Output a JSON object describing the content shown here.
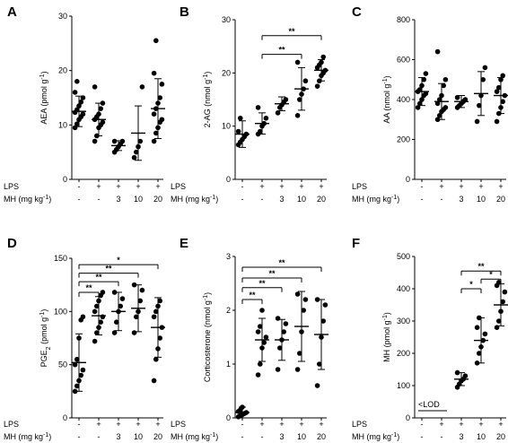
{
  "row_labels": {
    "lps": "LPS",
    "mh": "MH (mg kg",
    "mh_sup": "-1",
    "mh_close": ")"
  },
  "chart_data": [
    {
      "type": "scatter",
      "panel": "A",
      "ylabel": "AEA (pmol g",
      "ylabel_sup": "-1",
      "ylabel_close": ")",
      "ylim": [
        0,
        30
      ],
      "yticks": [
        0,
        10,
        20,
        30
      ],
      "lps": [
        "-",
        "+",
        "+",
        "+",
        "+"
      ],
      "mh": [
        "-",
        "-",
        "3",
        "10",
        "20"
      ],
      "groups": [
        {
          "mean": 12.5,
          "sd": 2.8,
          "points": [
            9.5,
            10.2,
            11.0,
            11.5,
            12.0,
            12.3,
            12.8,
            13.5,
            14.2,
            15.0,
            16.0,
            18.0
          ]
        },
        {
          "mean": 11.0,
          "sd": 3.0,
          "points": [
            7.0,
            8.0,
            9.5,
            10.0,
            10.5,
            11.0,
            11.5,
            12.0,
            13.0,
            14.0,
            17.0
          ]
        },
        {
          "mean": 6.2,
          "sd": 0.9,
          "points": [
            5.0,
            5.5,
            6.0,
            6.5,
            7.0,
            7.0
          ]
        },
        {
          "mean": 8.5,
          "sd": 5.0,
          "points": [
            4.0,
            5.0,
            6.0,
            7.0,
            17.0
          ]
        },
        {
          "mean": 13.0,
          "sd": 5.5,
          "points": [
            7.0,
            8.5,
            9.5,
            10.5,
            11.0,
            12.0,
            13.0,
            14.0,
            15.0,
            17.5,
            19.5,
            25.5
          ]
        }
      ],
      "brackets": []
    },
    {
      "type": "scatter",
      "panel": "B",
      "ylabel": "2-AG (nmol g",
      "ylabel_sup": "-1",
      "ylabel_close": ")",
      "ylim": [
        0,
        30
      ],
      "yticks": [
        0,
        10,
        20,
        30
      ],
      "lps": [
        "-",
        "+",
        "+",
        "+",
        "+"
      ],
      "mh": [
        "-",
        "-",
        "3",
        "10",
        "20"
      ],
      "groups": [
        {
          "mean": 8.5,
          "sd": 2.5,
          "points": [
            6.5,
            7.0,
            7.5,
            8.0,
            8.5,
            9.0,
            11.5
          ]
        },
        {
          "mean": 10.5,
          "sd": 2.0,
          "points": [
            8.5,
            9.0,
            10.0,
            10.5,
            11.5,
            13.5
          ]
        },
        {
          "mean": 14.2,
          "sd": 1.3,
          "points": [
            12.5,
            13.5,
            14.0,
            14.5,
            15.0
          ]
        },
        {
          "mean": 17.0,
          "sd": 4.0,
          "points": [
            12.0,
            15.0,
            16.0,
            17.0,
            18.5,
            22.0
          ]
        },
        {
          "mean": 20.5,
          "sd": 2.0,
          "points": [
            17.5,
            18.5,
            19.5,
            20.0,
            20.5,
            21.0,
            21.5,
            22.0,
            23.0
          ]
        }
      ],
      "brackets": [
        {
          "from": 1,
          "to": 4,
          "y": 27.0,
          "label": "**"
        },
        {
          "from": 1,
          "to": 3,
          "y": 23.5,
          "label": "**"
        }
      ]
    },
    {
      "type": "scatter",
      "panel": "C",
      "ylabel": "AA (nmol g",
      "ylabel_sup": "-1",
      "ylabel_close": ")",
      "ylim": [
        0,
        800
      ],
      "yticks": [
        0,
        200,
        400,
        600,
        800
      ],
      "lps": [
        "-",
        "+",
        "+",
        "+",
        "+"
      ],
      "mh": [
        "-",
        "-",
        "3",
        "10",
        "20"
      ],
      "groups": [
        {
          "mean": 440,
          "sd": 70,
          "points": [
            360,
            380,
            400,
            420,
            430,
            440,
            450,
            470,
            500,
            530
          ]
        },
        {
          "mean": 390,
          "sd": 90,
          "points": [
            300,
            320,
            340,
            350,
            360,
            380,
            400,
            420,
            470,
            500,
            640
          ]
        },
        {
          "mean": 390,
          "sd": 30,
          "points": [
            360,
            370,
            380,
            390,
            400,
            410
          ]
        },
        {
          "mean": 430,
          "sd": 110,
          "points": [
            290,
            370,
            420,
            500,
            560
          ]
        },
        {
          "mean": 420,
          "sd": 90,
          "points": [
            290,
            330,
            360,
            390,
            420,
            440,
            460,
            500,
            520
          ]
        }
      ],
      "brackets": []
    },
    {
      "type": "scatter",
      "panel": "D",
      "ylabel": "PGE",
      "ylabel_sub": "2",
      "ylabel_rest": " (pmol g",
      "ylabel_sup": "-1",
      "ylabel_close": ")",
      "ylim": [
        0,
        150
      ],
      "yticks": [
        0,
        50,
        100,
        150
      ],
      "lps": [
        "-",
        "+",
        "+",
        "+",
        "+"
      ],
      "mh": [
        "-",
        "-",
        "3",
        "10",
        "20"
      ],
      "groups": [
        {
          "mean": 52,
          "sd": 27,
          "points": [
            25,
            30,
            35,
            40,
            45,
            50,
            55,
            75,
            92,
            95
          ]
        },
        {
          "mean": 96,
          "sd": 18,
          "points": [
            72,
            80,
            85,
            90,
            95,
            100,
            105,
            110,
            115,
            118
          ]
        },
        {
          "mean": 100,
          "sd": 18,
          "points": [
            80,
            90,
            100,
            105,
            112,
            118
          ]
        },
        {
          "mean": 103,
          "sd": 22,
          "points": [
            80,
            95,
            100,
            110,
            120,
            125
          ]
        },
        {
          "mean": 85,
          "sd": 28,
          "points": [
            35,
            55,
            65,
            75,
            85,
            95,
            100,
            105,
            110
          ]
        }
      ],
      "brackets": [
        {
          "from": 0,
          "to": 4,
          "y": 144,
          "label": "*"
        },
        {
          "from": 0,
          "to": 3,
          "y": 136,
          "label": "**"
        },
        {
          "from": 0,
          "to": 2,
          "y": 128,
          "label": "**"
        },
        {
          "from": 0,
          "to": 1,
          "y": 118,
          "label": "**"
        }
      ]
    },
    {
      "type": "scatter",
      "panel": "E",
      "ylabel": "Corticosterone (nmol g",
      "ylabel_sup": "-1",
      "ylabel_close": ")",
      "ylim": [
        0,
        3
      ],
      "yticks": [
        0,
        1,
        2,
        3
      ],
      "lps": [
        "-",
        "+",
        "+",
        "+",
        "+"
      ],
      "mh": [
        "-",
        "-",
        "3",
        "10",
        "20"
      ],
      "groups": [
        {
          "mean": 0.1,
          "sd": 0.1,
          "points": [
            0.02,
            0.04,
            0.06,
            0.08,
            0.1,
            0.12,
            0.15,
            0.2
          ]
        },
        {
          "mean": 1.45,
          "sd": 0.4,
          "points": [
            0.8,
            1.0,
            1.3,
            1.4,
            1.5,
            1.6,
            1.7,
            2.0
          ]
        },
        {
          "mean": 1.45,
          "sd": 0.38,
          "points": [
            0.9,
            1.3,
            1.45,
            1.6,
            1.75,
            1.85
          ]
        },
        {
          "mean": 1.7,
          "sd": 0.65,
          "points": [
            0.9,
            1.2,
            1.6,
            2.0,
            2.2,
            2.3
          ]
        },
        {
          "mean": 1.55,
          "sd": 0.65,
          "points": [
            0.6,
            1.0,
            1.5,
            1.8,
            2.1,
            2.2
          ]
        }
      ],
      "brackets": [
        {
          "from": 0,
          "to": 4,
          "y": 2.8,
          "label": "**"
        },
        {
          "from": 0,
          "to": 3,
          "y": 2.6,
          "label": "**"
        },
        {
          "from": 0,
          "to": 2,
          "y": 2.42,
          "label": "**"
        },
        {
          "from": 0,
          "to": 1,
          "y": 2.2,
          "label": "**"
        }
      ]
    },
    {
      "type": "scatter",
      "panel": "F",
      "ylabel": "MH (pmol g",
      "ylabel_sup": "-1",
      "ylabel_close": ")",
      "ylim": [
        0,
        500
      ],
      "yticks": [
        0,
        100,
        200,
        300,
        400,
        500
      ],
      "lps": [
        "-",
        "+",
        "+",
        "+",
        "+"
      ],
      "mh": [
        "-",
        "-",
        "3",
        "10",
        "20"
      ],
      "lod_label": "<LOD",
      "groups": [
        {
          "mean": null,
          "sd": null,
          "points": []
        },
        {
          "mean": null,
          "sd": null,
          "points": []
        },
        {
          "mean": 120,
          "sd": 20,
          "points": [
            95,
            105,
            115,
            120,
            130,
            140
          ]
        },
        {
          "mean": 240,
          "sd": 70,
          "points": [
            170,
            200,
            220,
            240,
            260,
            280,
            310
          ]
        },
        {
          "mean": 350,
          "sd": 65,
          "points": [
            280,
            300,
            330,
            360,
            390,
            410,
            420
          ]
        }
      ],
      "brackets": [
        {
          "from": 2,
          "to": 4,
          "y": 455,
          "label": "**"
        },
        {
          "from": 2,
          "to": 3,
          "y": 400,
          "label": "*"
        },
        {
          "from": 3,
          "to": 4,
          "y": 430,
          "label": "*"
        }
      ]
    }
  ]
}
